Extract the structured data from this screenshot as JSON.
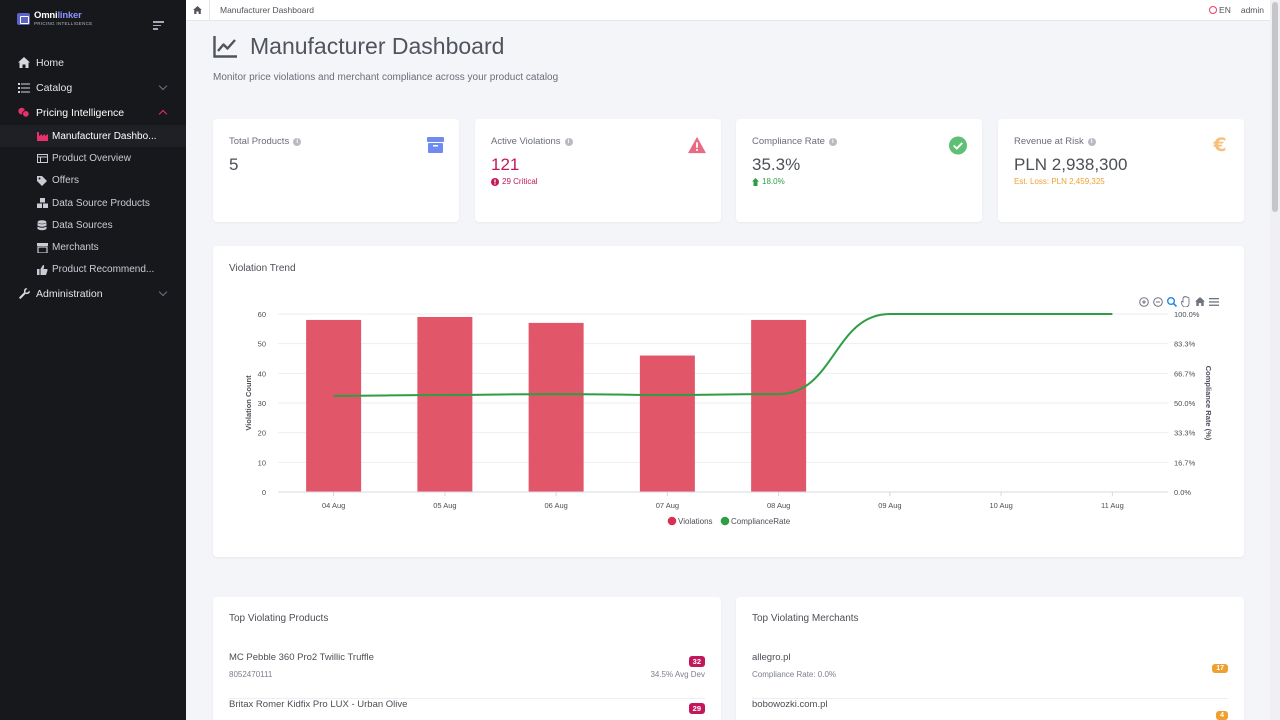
{
  "brand": {
    "name_a": "Omni",
    "name_b": "linker",
    "tagline": "PRICING INTELLIGENCE"
  },
  "sidebar": {
    "items": [
      {
        "label": "Home"
      },
      {
        "label": "Catalog"
      },
      {
        "label": "Pricing Intelligence"
      },
      {
        "label": "Administration"
      }
    ],
    "sub_items": [
      {
        "label": "Manufacturer Dashbo..."
      },
      {
        "label": "Product Overview"
      },
      {
        "label": "Offers"
      },
      {
        "label": "Data Source Products"
      },
      {
        "label": "Data Sources"
      },
      {
        "label": "Merchants"
      },
      {
        "label": "Product Recommend..."
      }
    ]
  },
  "topbar": {
    "breadcrumb": "Manufacturer Dashboard",
    "lang": "EN",
    "user": "admin"
  },
  "header": {
    "title": "Manufacturer Dashboard",
    "subtitle": "Monitor price violations and merchant compliance across your product catalog"
  },
  "stats": {
    "total_products": {
      "label": "Total Products",
      "value": "5"
    },
    "active_violations": {
      "label": "Active Violations",
      "value": "121",
      "sub": "29 Critical"
    },
    "compliance_rate": {
      "label": "Compliance Rate",
      "value": "35.3%",
      "sub": "18.0%"
    },
    "revenue_at_risk": {
      "label": "Revenue at Risk",
      "value": "PLN 2,938,300",
      "sub": "Est. Loss: PLN 2,459,325"
    }
  },
  "colors": {
    "accent": "#e8306a",
    "bar": "#e15769",
    "line": "#2e9e44",
    "critical": "#c2185b",
    "warning": "#f0a030"
  },
  "chart_data": {
    "type": "bar",
    "title": "Violation Trend",
    "categories": [
      "04 Aug",
      "05 Aug",
      "06 Aug",
      "07 Aug",
      "08 Aug",
      "09 Aug",
      "10 Aug",
      "11 Aug"
    ],
    "series": [
      {
        "name": "Violations",
        "type": "bar",
        "axis": "left",
        "values": [
          58,
          59,
          57,
          46,
          58,
          null,
          null,
          null
        ]
      },
      {
        "name": "ComplianceRate",
        "type": "line",
        "axis": "right",
        "values": [
          54,
          54.5,
          55,
          54.5,
          55,
          100,
          100,
          100
        ]
      }
    ],
    "ylabel": "Violation Count",
    "y2label": "Compliance Rate (%)",
    "ylim": [
      0,
      60
    ],
    "yticks": [
      "0",
      "10",
      "20",
      "30",
      "40",
      "50",
      "60"
    ],
    "y2lim": [
      0,
      100
    ],
    "y2ticks": [
      "0.0%",
      "16.7%",
      "33.3%",
      "50.0%",
      "66.7%",
      "83.3%",
      "100.0%"
    ],
    "legend": "bottom-center",
    "grid": true
  },
  "top_products": {
    "title": "Top Violating Products",
    "rows": [
      {
        "name": "MC Pebble 360 Pro2 Twillic Truffle",
        "code": "8052470111",
        "count": "32",
        "dev": "34.5% Avg Dev"
      },
      {
        "name": "Britax Romer Kidfix Pro LUX - Urban Olive",
        "code": "",
        "count": "29",
        "dev": ""
      }
    ]
  },
  "top_merchants": {
    "title": "Top Violating Merchants",
    "rows": [
      {
        "name": "allegro.pl",
        "rate": "Compliance Rate: 0.0%",
        "count": "17"
      },
      {
        "name": "bobowozki.com.pl",
        "rate": "",
        "count": "4"
      }
    ]
  }
}
